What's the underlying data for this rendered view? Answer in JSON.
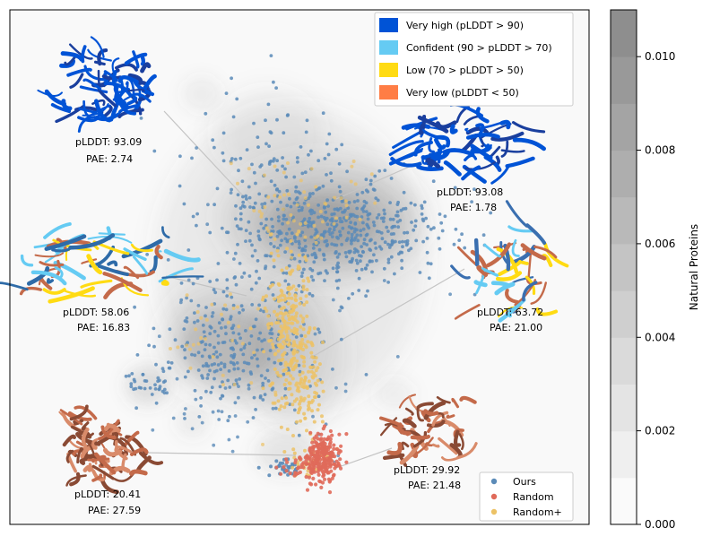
{
  "chart_data": {
    "type": "scatter",
    "title": "",
    "xlabel": "",
    "ylabel": "",
    "colorbar": {
      "label": "Natural Proteins",
      "range": [
        0.0,
        0.011
      ],
      "ticks": [
        "0.000",
        "0.002",
        "0.004",
        "0.006",
        "0.008",
        "0.010"
      ],
      "tick_values": [
        0.0,
        0.002,
        0.004,
        0.006,
        0.008,
        0.01
      ]
    },
    "plddt_legend": [
      {
        "label": "Very high (pLDDT > 90)",
        "color": "#0053d6"
      },
      {
        "label": "Confident (90 > pLDDT > 70)",
        "color": "#65cbf3"
      },
      {
        "label": "Low (70 > pLDDT > 50)",
        "color": "#ffdb13"
      },
      {
        "label": "Very low (pLDDT < 50)",
        "color": "#ff7d45"
      }
    ],
    "series": [
      {
        "name": "Ours",
        "color": "#5b8bb8"
      },
      {
        "name": "Random",
        "color": "#e06a5a"
      },
      {
        "name": "Random+",
        "color": "#ecc266"
      }
    ],
    "annotations": [
      {
        "id": "a1",
        "plddt": "pLDDT: 93.09",
        "pae": "PAE: 2.74"
      },
      {
        "id": "a2",
        "plddt": "pLDDT: 93.08",
        "pae": "PAE: 1.78"
      },
      {
        "id": "a3",
        "plddt": "pLDDT: 58.06",
        "pae": "PAE: 16.83"
      },
      {
        "id": "a4",
        "plddt": "pLDDT: 63.72",
        "pae": "PAE: 21.00"
      },
      {
        "id": "a5",
        "plddt": "pLDDT: 20.41",
        "pae": "PAE: 27.59"
      },
      {
        "id": "a6",
        "plddt": "pLDDT: 29.92",
        "pae": "PAE: 21.48"
      }
    ]
  }
}
